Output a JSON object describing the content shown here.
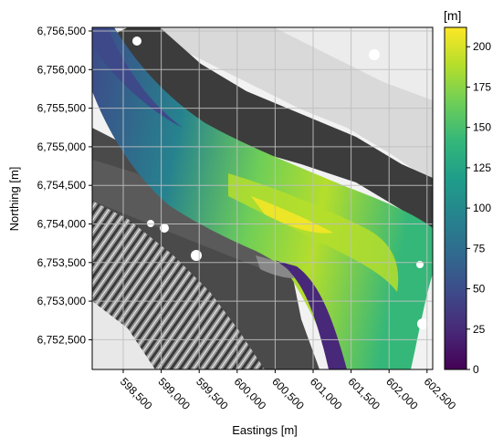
{
  "map": {
    "xlabel": "Eastings [m]",
    "ylabel": "Northing [m]",
    "x_ticks": [
      "598,500",
      "599,000",
      "599,500",
      "600,000",
      "600,500",
      "601,000",
      "601,500",
      "602,000",
      "602,500"
    ],
    "y_ticks": [
      "6,756,500",
      "6,756,000",
      "6,755,500",
      "6,755,000",
      "6,754,500",
      "6,754,000",
      "6,753,500",
      "6,753,000",
      "6,752,500"
    ],
    "grid": true
  },
  "colorbar": {
    "unit": "[m]",
    "ticks": [
      "0",
      "25",
      "50",
      "75",
      "100",
      "125",
      "150",
      "175",
      "200"
    ],
    "range": [
      0,
      212
    ],
    "colormap": "viridis"
  },
  "colors": {
    "grid": "#bfbfbf",
    "viridis": [
      "#440154",
      "#482878",
      "#3e4989",
      "#31688e",
      "#26828e",
      "#1f9e89",
      "#35b779",
      "#6ece58",
      "#b5de2b",
      "#fde725"
    ]
  }
}
